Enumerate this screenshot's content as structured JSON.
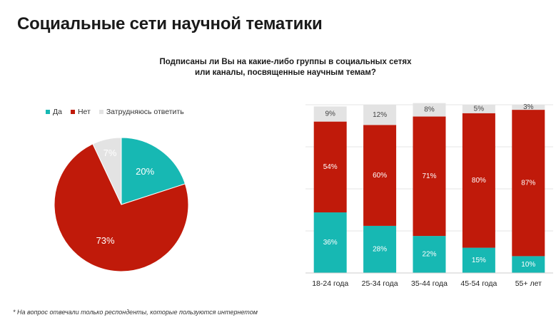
{
  "page": {
    "title": "Социальные сети научной тематики",
    "question_line1": "Подписаны ли Вы на какие-либо группы в социальных сетях",
    "question_line2": "или каналы, посвященные научным темам?",
    "footnote": "* На вопрос отвечали только респонденты, которые пользуются интернетом"
  },
  "legend": {
    "items": [
      {
        "label": "Да",
        "color": "#17b8b3"
      },
      {
        "label": "Нет",
        "color": "#c01a0a"
      },
      {
        "label": "Затрудняюсь ответить",
        "color": "#e3e3e3"
      }
    ]
  },
  "chart_data": [
    {
      "type": "pie",
      "title": "",
      "labels": [
        "Да",
        "Нет",
        "Затрудняюсь ответить"
      ],
      "values": [
        20,
        73,
        7
      ],
      "value_labels": [
        "20%",
        "73%",
        "7%"
      ],
      "colors": [
        "#17b8b3",
        "#c01a0a",
        "#e3e3e3"
      ]
    },
    {
      "type": "bar",
      "stacked": true,
      "categories": [
        "18-24 года",
        "25-34 года",
        "35-44 года",
        "45-54 года",
        "55+ лет"
      ],
      "series": [
        {
          "name": "Да",
          "color": "#17b8b3",
          "values": [
            36,
            28,
            22,
            15,
            10
          ],
          "labels": [
            "36%",
            "28%",
            "22%",
            "15%",
            "10%"
          ]
        },
        {
          "name": "Нет",
          "color": "#c01a0a",
          "values": [
            54,
            60,
            71,
            80,
            87
          ],
          "labels": [
            "54%",
            "60%",
            "71%",
            "80%",
            "87%"
          ]
        },
        {
          "name": "Затрудняюсь ответить",
          "color": "#e3e3e3",
          "values": [
            9,
            12,
            8,
            5,
            3
          ],
          "labels": [
            "9%",
            "12%",
            "8%",
            "5%",
            "3%"
          ]
        }
      ],
      "ylim": [
        0,
        100
      ],
      "grid": true
    }
  ]
}
